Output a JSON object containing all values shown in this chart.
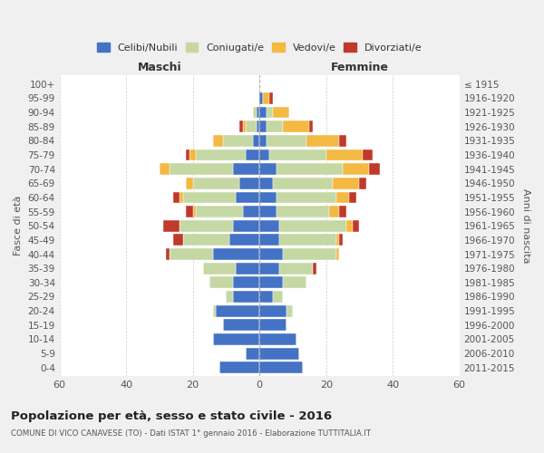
{
  "age_groups": [
    "0-4",
    "5-9",
    "10-14",
    "15-19",
    "20-24",
    "25-29",
    "30-34",
    "35-39",
    "40-44",
    "45-49",
    "50-54",
    "55-59",
    "60-64",
    "65-69",
    "70-74",
    "75-79",
    "80-84",
    "85-89",
    "90-94",
    "95-99",
    "100+"
  ],
  "birth_years": [
    "2011-2015",
    "2006-2010",
    "2001-2005",
    "1996-2000",
    "1991-1995",
    "1986-1990",
    "1981-1985",
    "1976-1980",
    "1971-1975",
    "1966-1970",
    "1961-1965",
    "1956-1960",
    "1951-1955",
    "1946-1950",
    "1941-1945",
    "1936-1940",
    "1931-1935",
    "1926-1930",
    "1921-1925",
    "1916-1920",
    "≤ 1915"
  ],
  "colors": {
    "celibe": "#4472C4",
    "coniugato": "#C5D8A4",
    "vedovo": "#F4B942",
    "divorziato": "#C0392B"
  },
  "maschi": {
    "celibe": [
      12,
      4,
      14,
      11,
      13,
      8,
      8,
      7,
      14,
      9,
      8,
      5,
      7,
      6,
      8,
      4,
      2,
      1,
      1,
      0,
      0
    ],
    "coniugato": [
      0,
      0,
      0,
      0,
      1,
      2,
      7,
      10,
      13,
      14,
      16,
      14,
      16,
      14,
      19,
      15,
      9,
      3,
      1,
      0,
      0
    ],
    "vedovo": [
      0,
      0,
      0,
      0,
      0,
      0,
      0,
      0,
      0,
      0,
      0,
      1,
      1,
      2,
      3,
      2,
      3,
      1,
      0,
      0,
      0
    ],
    "divorziato": [
      0,
      0,
      0,
      0,
      0,
      0,
      0,
      0,
      1,
      3,
      5,
      2,
      2,
      0,
      0,
      1,
      0,
      1,
      0,
      0,
      0
    ]
  },
  "femmine": {
    "celibe": [
      13,
      12,
      11,
      8,
      8,
      4,
      7,
      6,
      7,
      6,
      6,
      5,
      5,
      4,
      5,
      3,
      2,
      2,
      2,
      1,
      0
    ],
    "coniugato": [
      0,
      0,
      0,
      0,
      2,
      3,
      7,
      10,
      16,
      17,
      20,
      16,
      18,
      18,
      20,
      17,
      12,
      5,
      2,
      0,
      0
    ],
    "vedovo": [
      0,
      0,
      0,
      0,
      0,
      0,
      0,
      0,
      1,
      1,
      2,
      3,
      4,
      8,
      8,
      11,
      10,
      8,
      5,
      2,
      0
    ],
    "divorziato": [
      0,
      0,
      0,
      0,
      0,
      0,
      0,
      1,
      0,
      1,
      2,
      2,
      2,
      2,
      3,
      3,
      2,
      1,
      0,
      1,
      0
    ]
  },
  "xlim": 60,
  "title": "Popolazione per età, sesso e stato civile - 2016",
  "subtitle": "COMUNE DI VICO CANAVESE (TO) - Dati ISTAT 1° gennaio 2016 - Elaborazione TUTTITALIA.IT",
  "ylabel_left": "Fasce di età",
  "ylabel_right": "Anni di nascita",
  "xlabel_left": "Maschi",
  "xlabel_right": "Femmine",
  "bg_color": "#f0f0f0",
  "plot_bg_color": "#ffffff"
}
